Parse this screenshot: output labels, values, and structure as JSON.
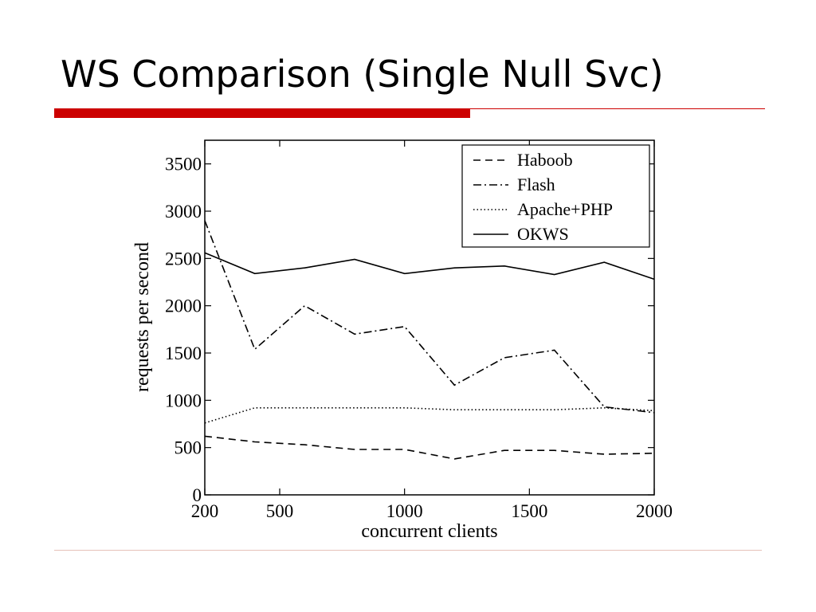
{
  "slide": {
    "title": "WS Comparison (Single Null Svc)",
    "accent_color": "#cc0000",
    "rule_color": "#cc0000"
  },
  "chart_data": {
    "type": "line",
    "title": "",
    "xlabel": "concurrent clients",
    "ylabel": "requests per second",
    "xlim": [
      200,
      2000
    ],
    "ylim": [
      0,
      3750
    ],
    "x_ticks": [
      200,
      500,
      1000,
      1500,
      2000
    ],
    "y_ticks": [
      0,
      500,
      1000,
      1500,
      2000,
      2500,
      3000,
      3500
    ],
    "grid": false,
    "legend_position": "top-right",
    "x": [
      200,
      400,
      600,
      800,
      1000,
      1200,
      1400,
      1600,
      1800,
      2000
    ],
    "series": [
      {
        "name": "Haboob",
        "style": "dashed",
        "color": "#000000",
        "values": [
          620,
          560,
          530,
          480,
          480,
          380,
          470,
          470,
          430,
          440
        ]
      },
      {
        "name": "Flash",
        "style": "dashdot",
        "color": "#000000",
        "values": [
          2900,
          1540,
          2000,
          1700,
          1780,
          1160,
          1450,
          1530,
          930,
          870
        ]
      },
      {
        "name": "Apache+PHP",
        "style": "dotted",
        "color": "#000000",
        "values": [
          760,
          920,
          920,
          920,
          920,
          900,
          900,
          900,
          920,
          890
        ]
      },
      {
        "name": "OKWS",
        "style": "solid",
        "color": "#000000",
        "values": [
          2560,
          2340,
          2400,
          2490,
          2340,
          2400,
          2420,
          2330,
          2460,
          2280
        ]
      }
    ]
  }
}
